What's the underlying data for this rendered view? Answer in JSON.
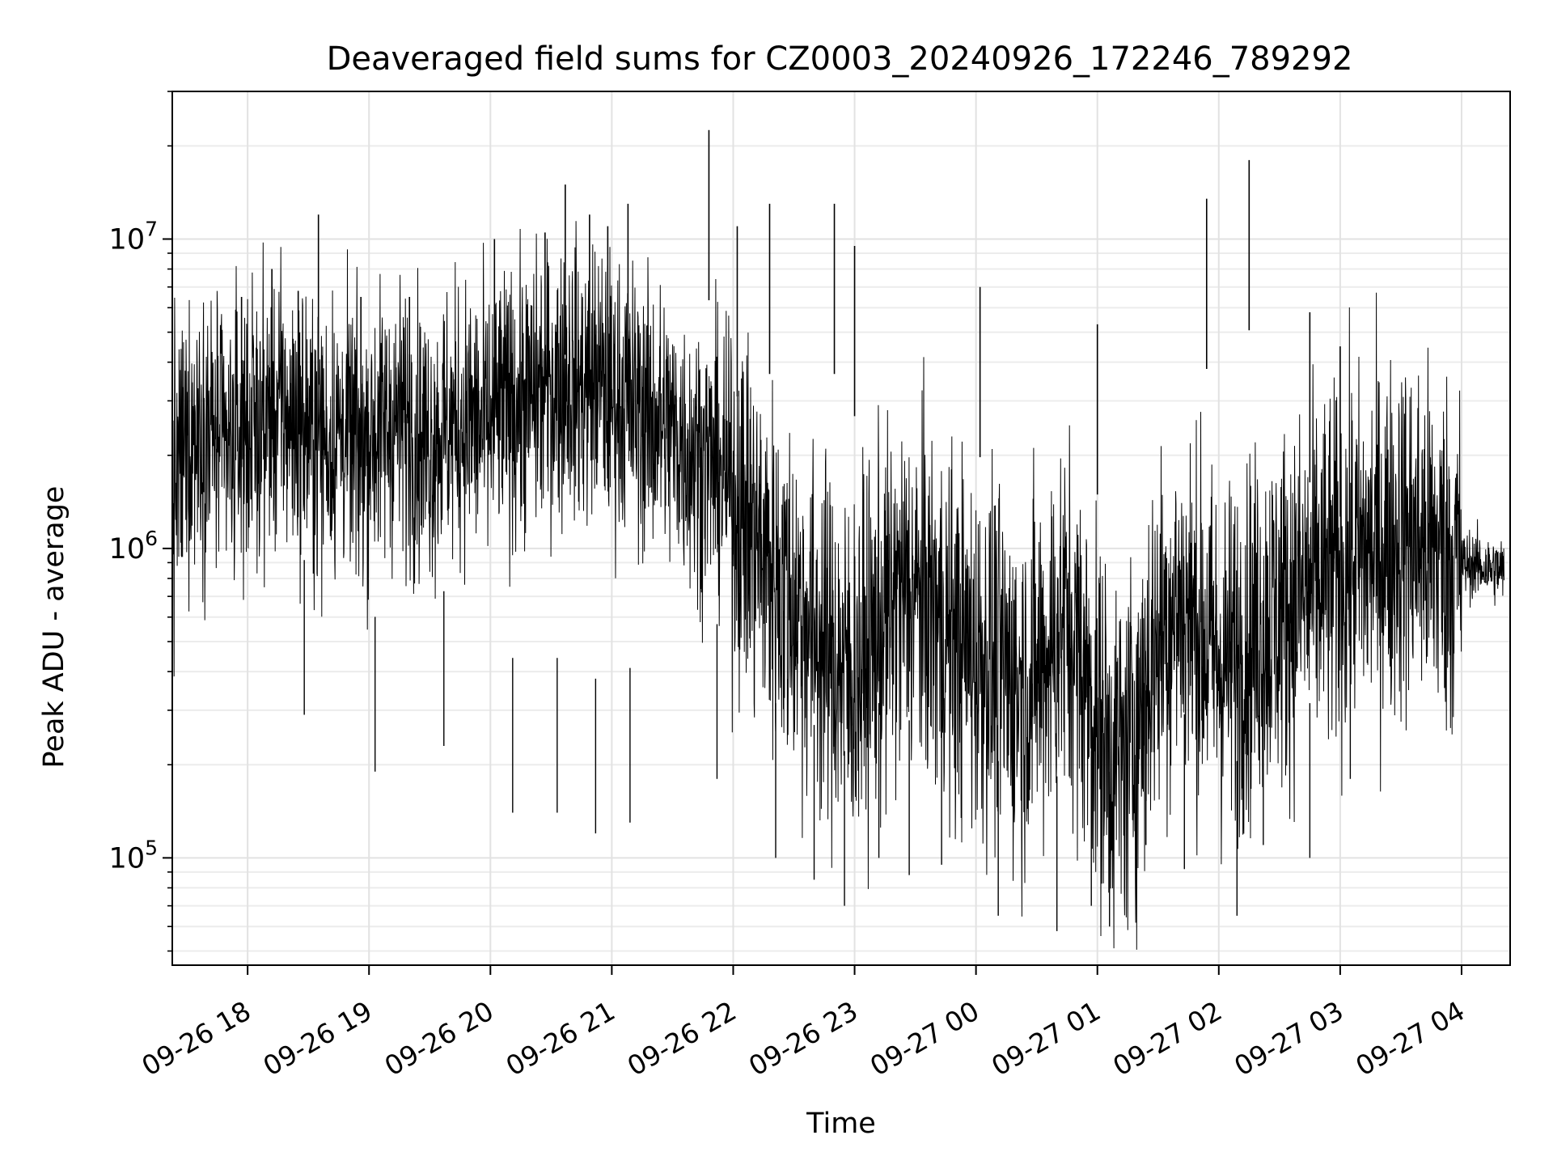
{
  "chart_data": {
    "type": "line",
    "title": "Deaveraged field sums for CZ0003_20240926_172246_789292",
    "xlabel": "Time",
    "ylabel": "Peak ADU - average",
    "x_range": [
      "2024-09-26 17:22:46",
      "2024-09-27 04:24:00"
    ],
    "y_scale": "log",
    "ylim": [
      45000,
      30000000
    ],
    "grid": true,
    "line_color": "#000000",
    "x_ticks": [
      {
        "time": "2024-09-26 18:00",
        "label": "09-26 18"
      },
      {
        "time": "2024-09-26 19:00",
        "label": "09-26 19"
      },
      {
        "time": "2024-09-26 20:00",
        "label": "09-26 20"
      },
      {
        "time": "2024-09-26 21:00",
        "label": "09-26 21"
      },
      {
        "time": "2024-09-26 22:00",
        "label": "09-26 22"
      },
      {
        "time": "2024-09-26 23:00",
        "label": "09-26 23"
      },
      {
        "time": "2024-09-27 00:00",
        "label": "09-27 00"
      },
      {
        "time": "2024-09-27 01:00",
        "label": "09-27 01"
      },
      {
        "time": "2024-09-27 02:00",
        "label": "09-27 02"
      },
      {
        "time": "2024-09-27 03:00",
        "label": "09-27 03"
      },
      {
        "time": "2024-09-27 04:00",
        "label": "09-27 04"
      }
    ],
    "y_ticks": [
      {
        "value": 100000,
        "base": "10",
        "exp": "5"
      },
      {
        "value": 1000000,
        "base": "10",
        "exp": "6"
      },
      {
        "value": 10000000,
        "base": "10",
        "exp": "7"
      }
    ],
    "series": [
      {
        "points": [
          [
            "2024-09-26 17:23",
            1500000
          ],
          [
            "2024-09-26 17:30",
            2200000
          ],
          [
            "2024-09-26 17:37",
            2600000
          ],
          [
            "2024-09-26 17:44",
            2300000
          ],
          [
            "2024-09-26 17:51",
            2000000
          ],
          [
            "2024-09-26 17:58",
            2500000
          ],
          [
            "2024-09-26 18:05",
            2400000
          ],
          [
            "2024-09-26 18:12",
            2800000
          ],
          [
            "2024-09-26 18:19",
            2700000
          ],
          [
            "2024-09-26 18:26",
            2500000
          ],
          [
            "2024-09-26 18:33",
            2300000
          ],
          [
            "2024-09-26 18:40",
            2200000
          ],
          [
            "2024-09-26 18:47",
            2400000
          ],
          [
            "2024-09-26 18:54",
            2100000
          ],
          [
            "2024-09-26 19:01",
            2300000
          ],
          [
            "2024-09-26 19:08",
            2500000
          ],
          [
            "2024-09-26 19:15",
            2600000
          ],
          [
            "2024-09-26 19:22",
            2400000
          ],
          [
            "2024-09-26 19:29",
            2200000
          ],
          [
            "2024-09-26 19:36",
            2400000
          ],
          [
            "2024-09-26 19:43",
            2500000
          ],
          [
            "2024-09-26 19:50",
            2600000
          ],
          [
            "2024-09-26 19:57",
            2400000
          ],
          [
            "2024-09-26 20:04",
            2700000
          ],
          [
            "2024-09-26 20:11",
            2900000
          ],
          [
            "2024-09-26 20:18",
            3000000
          ],
          [
            "2024-09-26 20:25",
            3200000
          ],
          [
            "2024-09-26 20:32",
            3400000
          ],
          [
            "2024-09-26 20:39",
            3600000
          ],
          [
            "2024-09-26 20:46",
            3300000
          ],
          [
            "2024-09-26 20:53",
            3500000
          ],
          [
            "2024-09-26 21:00",
            3100000
          ],
          [
            "2024-09-26 21:07",
            3000000
          ],
          [
            "2024-09-26 21:14",
            2800000
          ],
          [
            "2024-09-26 21:21",
            2600000
          ],
          [
            "2024-09-26 21:28",
            2400000
          ],
          [
            "2024-09-26 21:35",
            2200000
          ],
          [
            "2024-09-26 21:42",
            2000000
          ],
          [
            "2024-09-26 21:49",
            1900000
          ],
          [
            "2024-09-26 21:56",
            1700000
          ],
          [
            "2024-09-26 22:03",
            1400000
          ],
          [
            "2024-09-26 22:10",
            1100000
          ],
          [
            "2024-09-26 22:17",
            900000
          ],
          [
            "2024-09-26 22:24",
            750000
          ],
          [
            "2024-09-26 22:31",
            650000
          ],
          [
            "2024-09-26 22:38",
            560000
          ],
          [
            "2024-09-26 22:45",
            480000
          ],
          [
            "2024-09-26 22:52",
            420000
          ],
          [
            "2024-09-26 22:59",
            380000
          ],
          [
            "2024-09-26 23:06",
            450000
          ],
          [
            "2024-09-26 23:13",
            550000
          ],
          [
            "2024-09-26 23:20",
            650000
          ],
          [
            "2024-09-26 23:27",
            720000
          ],
          [
            "2024-09-26 23:34",
            680000
          ],
          [
            "2024-09-26 23:41",
            600000
          ],
          [
            "2024-09-26 23:48",
            520000
          ],
          [
            "2024-09-26 23:55",
            480000
          ],
          [
            "2024-09-27 00:02",
            450000
          ],
          [
            "2024-09-27 00:09",
            420000
          ],
          [
            "2024-09-27 00:16",
            380000
          ],
          [
            "2024-09-27 00:23",
            350000
          ],
          [
            "2024-09-27 00:30",
            400000
          ],
          [
            "2024-09-27 00:37",
            480000
          ],
          [
            "2024-09-27 00:44",
            600000
          ],
          [
            "2024-09-27 00:51",
            450000
          ],
          [
            "2024-09-27 00:58",
            300000
          ],
          [
            "2024-09-27 01:05",
            230000
          ],
          [
            "2024-09-27 01:12",
            200000
          ],
          [
            "2024-09-27 01:19",
            260000
          ],
          [
            "2024-09-27 01:26",
            420000
          ],
          [
            "2024-09-27 01:33",
            560000
          ],
          [
            "2024-09-27 01:40",
            650000
          ],
          [
            "2024-09-27 01:47",
            600000
          ],
          [
            "2024-09-27 01:54",
            500000
          ],
          [
            "2024-09-27 02:01",
            420000
          ],
          [
            "2024-09-27 02:08",
            450000
          ],
          [
            "2024-09-27 02:15",
            500000
          ],
          [
            "2024-09-27 02:22",
            580000
          ],
          [
            "2024-09-27 02:29",
            620000
          ],
          [
            "2024-09-27 02:36",
            680000
          ],
          [
            "2024-09-27 02:43",
            720000
          ],
          [
            "2024-09-27 02:50",
            780000
          ],
          [
            "2024-09-27 02:57",
            820000
          ],
          [
            "2024-09-27 03:04",
            900000
          ],
          [
            "2024-09-27 03:11",
            950000
          ],
          [
            "2024-09-27 03:18",
            1000000
          ],
          [
            "2024-09-27 03:25",
            1050000
          ],
          [
            "2024-09-27 03:32",
            1100000
          ],
          [
            "2024-09-27 03:39",
            1050000
          ],
          [
            "2024-09-27 03:46",
            1000000
          ],
          [
            "2024-09-27 03:53",
            950000
          ],
          [
            "2024-09-27 04:00",
            900000
          ],
          [
            "2024-09-27 04:07",
            880000
          ],
          [
            "2024-09-27 04:14",
            860000
          ],
          [
            "2024-09-27 04:21",
            850000
          ]
        ],
        "spikes": [
          [
            "2024-09-26 17:57",
            6500000
          ],
          [
            "2024-09-26 18:12",
            8000000
          ],
          [
            "2024-09-26 18:25",
            6800000
          ],
          [
            "2024-09-26 18:35",
            12000000
          ],
          [
            "2024-09-26 18:56",
            6500000
          ],
          [
            "2024-09-26 19:20",
            6500000
          ],
          [
            "2024-09-26 20:02",
            10000000
          ],
          [
            "2024-09-26 20:27",
            10500000
          ],
          [
            "2024-09-26 20:37",
            15000000
          ],
          [
            "2024-09-26 20:49",
            12000000
          ],
          [
            "2024-09-26 20:58",
            11000000
          ],
          [
            "2024-09-26 21:08",
            13000000
          ],
          [
            "2024-09-26 21:48",
            22500000
          ],
          [
            "2024-09-26 22:02",
            11000000
          ],
          [
            "2024-09-26 22:18",
            13000000
          ],
          [
            "2024-09-26 22:50",
            13000000
          ],
          [
            "2024-09-26 23:00",
            9500000
          ],
          [
            "2024-09-27 00:02",
            7000000
          ],
          [
            "2024-09-27 01:00",
            5300000
          ],
          [
            "2024-09-27 01:54",
            13500000
          ],
          [
            "2024-09-27 02:15",
            18000000
          ],
          [
            "2024-09-27 02:45",
            5800000
          ],
          [
            "2024-09-27 03:00",
            4500000
          ]
        ],
        "dips": [
          [
            "2024-09-26 18:28",
            290000
          ],
          [
            "2024-09-26 19:03",
            190000
          ],
          [
            "2024-09-26 19:37",
            230000
          ],
          [
            "2024-09-26 20:11",
            140000
          ],
          [
            "2024-09-26 20:33",
            140000
          ],
          [
            "2024-09-26 20:52",
            120000
          ],
          [
            "2024-09-26 21:09",
            130000
          ],
          [
            "2024-09-26 21:52",
            180000
          ],
          [
            "2024-09-26 22:21",
            100000
          ],
          [
            "2024-09-26 22:40",
            85000
          ],
          [
            "2024-09-26 22:55",
            70000
          ],
          [
            "2024-09-26 23:12",
            100000
          ],
          [
            "2024-09-26 23:27",
            88000
          ],
          [
            "2024-09-26 23:43",
            95000
          ],
          [
            "2024-09-27 00:11",
            65000
          ],
          [
            "2024-09-27 00:40",
            58000
          ],
          [
            "2024-09-27 00:57",
            70000
          ],
          [
            "2024-09-27 01:06",
            60000
          ],
          [
            "2024-09-27 01:24",
            110000
          ],
          [
            "2024-09-27 01:43",
            92000
          ],
          [
            "2024-09-27 02:09",
            65000
          ],
          [
            "2024-09-27 02:22",
            110000
          ],
          [
            "2024-09-27 02:45",
            100000
          ],
          [
            "2024-09-27 03:05",
            180000
          ]
        ]
      }
    ]
  }
}
